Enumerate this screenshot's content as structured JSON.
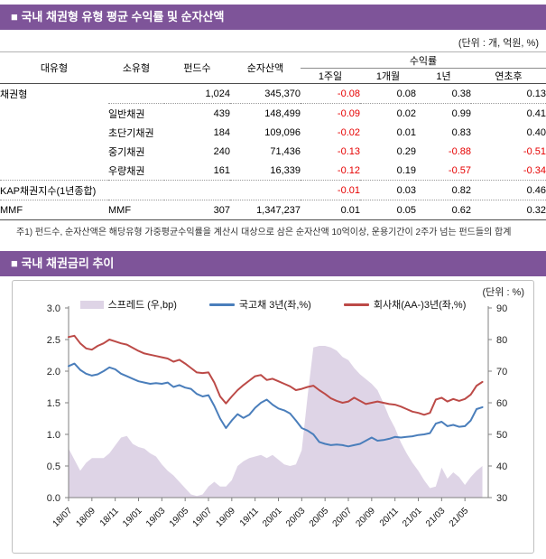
{
  "section1": {
    "title": "■ 국내 채권형 유형 평균 수익률 및 순자산액",
    "unit_label": "(단위 : 개, 억원, %)",
    "table": {
      "col_headers": [
        "대유형",
        "소유형",
        "펀드수",
        "순자산액"
      ],
      "returns_group_header": "수익률",
      "returns_subheaders": [
        "1주일",
        "1개월",
        "1년",
        "연초후"
      ],
      "rows": [
        {
          "major": "채권형",
          "minor": "",
          "funds": "1,024",
          "assets": "345,370",
          "r1w": "-0.08",
          "r1m": "0.08",
          "r1y": "0.38",
          "rytd": "0.13"
        },
        {
          "major": "",
          "minor": "일반채권",
          "funds": "439",
          "assets": "148,499",
          "r1w": "-0.09",
          "r1m": "0.02",
          "r1y": "0.99",
          "rytd": "0.41"
        },
        {
          "major": "",
          "minor": "초단기채권",
          "funds": "184",
          "assets": "109,096",
          "r1w": "-0.02",
          "r1m": "0.01",
          "r1y": "0.83",
          "rytd": "0.40"
        },
        {
          "major": "",
          "minor": "중기채권",
          "funds": "240",
          "assets": "71,436",
          "r1w": "-0.13",
          "r1m": "0.29",
          "r1y": "-0.88",
          "rytd": "-0.51"
        },
        {
          "major": "",
          "minor": "우량채권",
          "funds": "161",
          "assets": "16,339",
          "r1w": "-0.12",
          "r1m": "0.19",
          "r1y": "-0.57",
          "rytd": "-0.34"
        },
        {
          "major": "KAP채권지수(1년종합)",
          "minor": "",
          "funds": "",
          "assets": "",
          "r1w": "-0.01",
          "r1m": "0.03",
          "r1y": "0.82",
          "rytd": "0.46"
        },
        {
          "major": "MMF",
          "minor": "MMF",
          "funds": "307",
          "assets": "1,347,237",
          "r1w": "0.01",
          "r1m": "0.05",
          "r1y": "0.62",
          "rytd": "0.32"
        }
      ]
    },
    "note": "주1) 펀드수, 순자산액은 해당유형 가중평균수익률을 계산시 대상으로 삼은 순자산액 10억이상, 운용기간이 2주가 넘는 펀드들의 합계"
  },
  "section2": {
    "title": "■ 국내 채권금리 추이",
    "unit_label": "(단위 : %)"
  },
  "colors": {
    "header_bar_bg": "#7e5499",
    "negative_text": "#e60000",
    "treasury_line": "#4a7ebb",
    "corporate_line": "#bc4a47",
    "spread_area": "#ded4e6",
    "chart_border": "#c0c0c0",
    "axis": "#808080"
  },
  "chart_data": {
    "type": "line",
    "subtype": "two lines on left axis + area on right axis",
    "x_unit": "month (YY/MM), daily rates from 18/07 to 21/06",
    "x_domain": [
      0,
      36
    ],
    "x_start": 0,
    "x_step": 0.5,
    "x_tick_every_months": 2,
    "x_tick_labels": [
      "18/07",
      "18/09",
      "18/11",
      "19/01",
      "19/03",
      "19/05",
      "19/07",
      "19/09",
      "19/11",
      "20/01",
      "20/03",
      "20/05",
      "20/07",
      "20/09",
      "20/11",
      "21/01",
      "21/03",
      "21/05"
    ],
    "left_axis": {
      "min": 0.0,
      "max": 3.0,
      "step": 0.5,
      "labels": [
        "3.0",
        "2.5",
        "2.0",
        "1.5",
        "1.0",
        "0.5",
        "0.0"
      ]
    },
    "right_axis": {
      "min": 30,
      "max": 90,
      "step": 10,
      "labels": [
        "90",
        "80",
        "70",
        "60",
        "50",
        "40",
        "30"
      ]
    },
    "grid": false,
    "legend_position": "top-center",
    "series": [
      {
        "name": "스프레드 (우,bp)",
        "type": "area",
        "axis": "right",
        "color": "#ded4e6",
        "values": [
          45.5,
          42,
          38.5,
          41,
          42.5,
          42.5,
          42.5,
          44,
          46.5,
          49,
          49.5,
          47,
          46,
          45.5,
          44,
          43,
          40.5,
          38.5,
          37,
          35,
          33,
          31,
          30.5,
          31,
          33.5,
          35,
          33.5,
          33.5,
          35.5,
          40,
          41.5,
          42.5,
          43,
          43.5,
          42.5,
          43.5,
          42,
          40.5,
          40,
          40.5,
          45,
          62,
          77.5,
          78,
          78,
          77.5,
          76.5,
          74.5,
          73.5,
          71,
          69,
          67.5,
          66,
          64,
          60,
          55.5,
          52,
          47.5,
          44,
          41,
          38.5,
          35.5,
          33,
          33.5,
          39.5,
          36,
          38,
          36.5,
          34,
          36.5,
          38.5,
          40
        ]
      },
      {
        "name": "국고채 3년(좌,%)",
        "type": "line",
        "axis": "left",
        "color": "#4a7ebb",
        "values": [
          2.08,
          2.12,
          2.02,
          1.96,
          1.93,
          1.95,
          2.0,
          2.06,
          2.03,
          1.96,
          1.92,
          1.88,
          1.84,
          1.82,
          1.8,
          1.81,
          1.8,
          1.82,
          1.75,
          1.78,
          1.74,
          1.72,
          1.64,
          1.6,
          1.62,
          1.45,
          1.25,
          1.1,
          1.22,
          1.32,
          1.26,
          1.31,
          1.42,
          1.5,
          1.55,
          1.47,
          1.41,
          1.38,
          1.33,
          1.22,
          1.1,
          1.06,
          1.0,
          0.88,
          0.85,
          0.83,
          0.84,
          0.83,
          0.81,
          0.83,
          0.85,
          0.9,
          0.95,
          0.9,
          0.91,
          0.93,
          0.96,
          0.95,
          0.96,
          0.97,
          0.99,
          1.0,
          1.02,
          1.17,
          1.2,
          1.13,
          1.15,
          1.12,
          1.13,
          1.22,
          1.4,
          1.43
        ]
      },
      {
        "name": "회사채(AA-)3년(좌,%)",
        "type": "line",
        "axis": "left",
        "color": "#bc4a47",
        "values": [
          2.54,
          2.56,
          2.44,
          2.36,
          2.34,
          2.4,
          2.44,
          2.5,
          2.47,
          2.44,
          2.42,
          2.37,
          2.32,
          2.28,
          2.26,
          2.24,
          2.22,
          2.2,
          2.15,
          2.18,
          2.12,
          2.05,
          1.98,
          1.97,
          1.98,
          1.82,
          1.6,
          1.49,
          1.6,
          1.7,
          1.78,
          1.85,
          1.92,
          1.94,
          1.86,
          1.88,
          1.84,
          1.8,
          1.76,
          1.7,
          1.72,
          1.75,
          1.77,
          1.7,
          1.64,
          1.57,
          1.53,
          1.5,
          1.52,
          1.58,
          1.53,
          1.48,
          1.5,
          1.52,
          1.5,
          1.48,
          1.47,
          1.44,
          1.4,
          1.36,
          1.34,
          1.31,
          1.34,
          1.55,
          1.58,
          1.52,
          1.56,
          1.53,
          1.56,
          1.63,
          1.77,
          1.83
        ]
      }
    ]
  }
}
